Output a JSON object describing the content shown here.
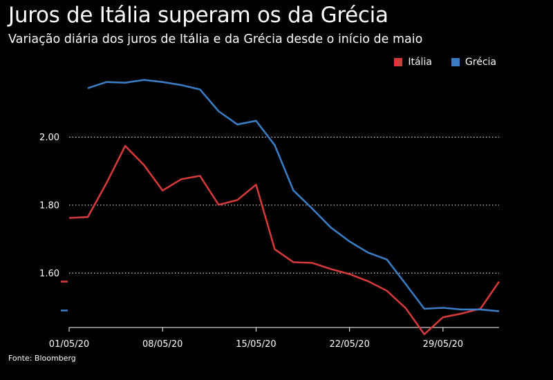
{
  "chart_data": {
    "type": "line",
    "title": "Juros de Itália superam os da Grécia",
    "subtitle": "Variação diária dos juros de Itália e da Grécia desde o início de maio",
    "source": "Fonte: Bloomberg",
    "ylim": [
      1.44,
      2.2
    ],
    "yticks": [
      {
        "value": 1.6,
        "label": "1.60"
      },
      {
        "value": 1.8,
        "label": "1.80"
      },
      {
        "value": 2.0,
        "label": "2.00"
      }
    ],
    "xlim": [
      0,
      23
    ],
    "xticks": [
      {
        "index": 0,
        "label": "01/05/20"
      },
      {
        "index": 5,
        "label": "08/05/20"
      },
      {
        "index": 10,
        "label": "15/05/20"
      },
      {
        "index": 15,
        "label": "22/05/20"
      },
      {
        "index": 20,
        "label": "29/05/20"
      }
    ],
    "series": [
      {
        "name": "Itália",
        "color": "#d43a3a",
        "start_marker": 1.575,
        "values": [
          1.762,
          1.765,
          1.865,
          1.974,
          1.918,
          1.843,
          1.876,
          1.886,
          1.801,
          1.815,
          1.86,
          1.67,
          1.632,
          1.63,
          1.612,
          1.597,
          1.576,
          1.548,
          1.497,
          1.42,
          1.47,
          1.481,
          1.495,
          1.575
        ]
      },
      {
        "name": "Grécia",
        "color": "#3a7dc4",
        "start_marker": 1.49,
        "values": [
          null,
          2.144,
          2.162,
          2.16,
          2.168,
          2.162,
          2.153,
          2.14,
          2.076,
          2.037,
          2.048,
          1.976,
          1.843,
          1.79,
          1.734,
          1.693,
          1.66,
          1.64,
          1.568,
          1.495,
          1.498,
          1.493,
          1.493,
          1.488
        ]
      }
    ]
  }
}
